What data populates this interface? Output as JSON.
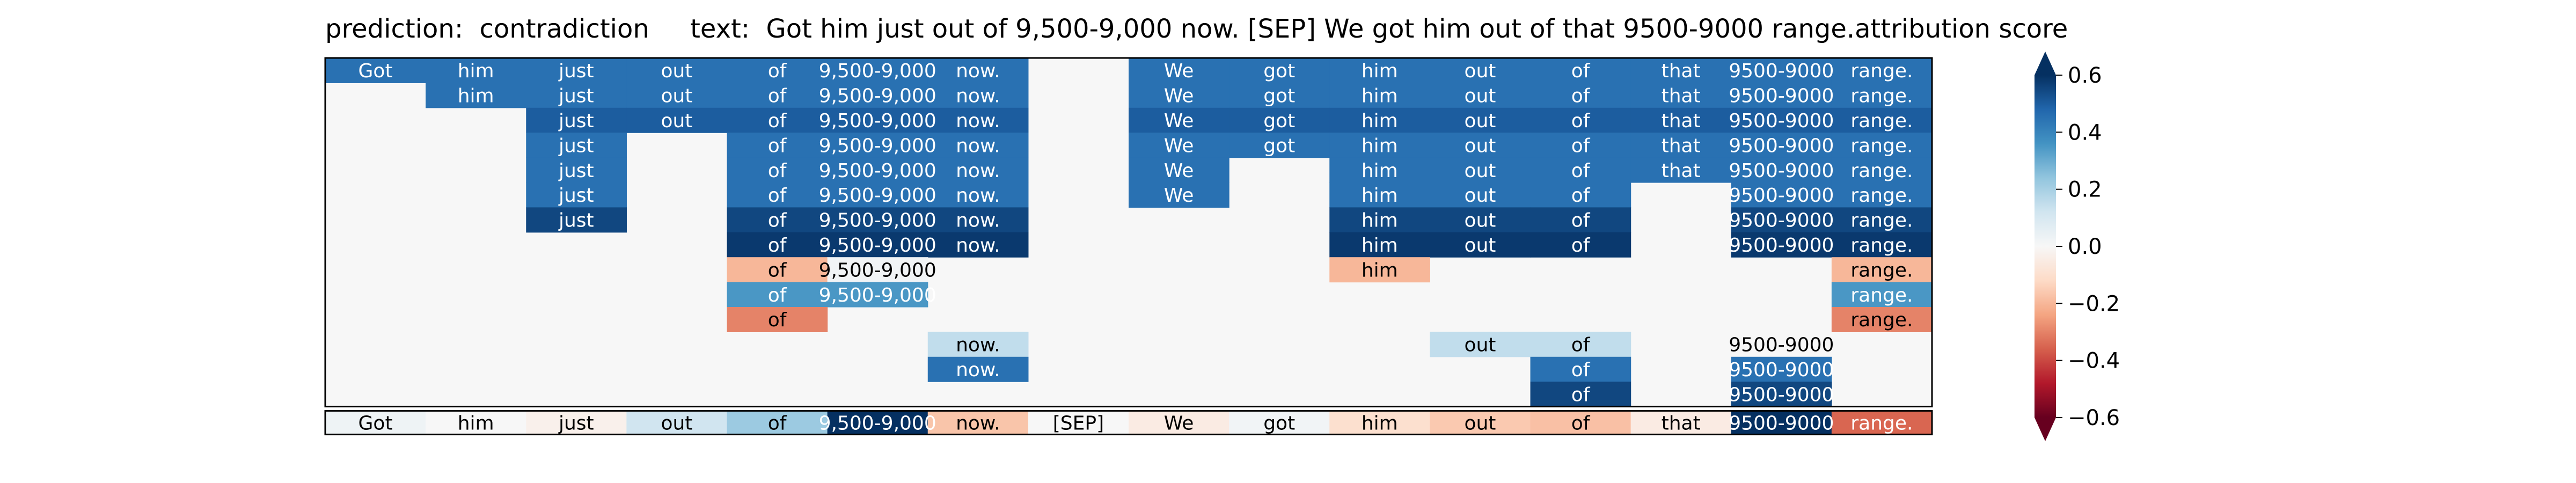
{
  "chart_data": {
    "type": "heatmap",
    "title": "prediction:  contradiction     text:  Got him just out of 9,500-9,000 now. [SEP] We got him out of that 9500-9000 range.attribution score",
    "tokens": [
      "Got",
      "him",
      "just",
      "out",
      "of",
      "9,500-9,000",
      "now.",
      "[SEP]",
      "We",
      "got",
      "him",
      "out",
      "of",
      "that",
      "9500-9000",
      "range."
    ],
    "layers": [
      [
        0.45,
        0.45,
        0.45,
        0.45,
        0.45,
        0.45,
        0.45,
        null,
        0.45,
        0.45,
        0.45,
        0.45,
        0.45,
        0.45,
        0.45,
        0.45
      ],
      [
        null,
        0.45,
        0.45,
        0.45,
        0.45,
        0.45,
        0.45,
        null,
        0.45,
        0.45,
        0.45,
        0.45,
        0.45,
        0.45,
        0.45,
        0.45
      ],
      [
        null,
        null,
        0.5,
        0.5,
        0.5,
        0.5,
        0.5,
        null,
        0.5,
        0.5,
        0.5,
        0.5,
        0.5,
        0.5,
        0.5,
        0.5
      ],
      [
        null,
        null,
        0.45,
        null,
        0.45,
        0.45,
        0.45,
        null,
        0.45,
        0.45,
        0.45,
        0.45,
        0.45,
        0.45,
        0.45,
        0.45
      ],
      [
        null,
        null,
        0.45,
        null,
        0.45,
        0.45,
        0.45,
        null,
        0.45,
        null,
        0.45,
        0.45,
        0.45,
        0.45,
        0.45,
        0.45
      ],
      [
        null,
        null,
        0.45,
        null,
        0.45,
        0.45,
        0.45,
        null,
        0.45,
        null,
        0.45,
        0.45,
        0.45,
        null,
        0.45,
        0.45
      ],
      [
        null,
        null,
        0.55,
        null,
        0.55,
        0.55,
        0.55,
        null,
        null,
        null,
        0.55,
        0.55,
        0.55,
        null,
        0.55,
        0.55
      ],
      [
        null,
        null,
        null,
        null,
        0.58,
        0.58,
        0.58,
        null,
        null,
        null,
        0.58,
        0.58,
        0.58,
        null,
        0.58,
        0.58
      ],
      [
        null,
        null,
        null,
        null,
        -0.2,
        0.02,
        null,
        null,
        null,
        null,
        -0.2,
        null,
        null,
        null,
        null,
        -0.2
      ],
      [
        null,
        null,
        null,
        null,
        0.35,
        0.35,
        null,
        null,
        null,
        null,
        null,
        null,
        null,
        null,
        null,
        0.35
      ],
      [
        null,
        null,
        null,
        null,
        -0.3,
        null,
        null,
        null,
        null,
        null,
        null,
        null,
        null,
        null,
        null,
        -0.3
      ],
      [
        null,
        null,
        null,
        null,
        null,
        null,
        0.15,
        null,
        null,
        null,
        null,
        0.15,
        0.15,
        null,
        0.0,
        null
      ],
      [
        null,
        null,
        null,
        null,
        null,
        null,
        0.45,
        null,
        null,
        null,
        null,
        null,
        0.45,
        null,
        0.45,
        null
      ],
      [
        null,
        null,
        null,
        null,
        null,
        null,
        null,
        null,
        null,
        null,
        null,
        null,
        0.55,
        null,
        0.55,
        null
      ]
    ],
    "summary": [
      0.03,
      0.0,
      -0.03,
      0.12,
      0.22,
      0.6,
      -0.17,
      0.0,
      -0.05,
      0.02,
      -0.1,
      -0.16,
      -0.18,
      -0.05,
      0.6,
      -0.35
    ],
    "colorbar": {
      "colormap": "RdBu",
      "range": [
        -0.6,
        0.6
      ],
      "ticks": [
        -0.6,
        -0.4,
        -0.2,
        0.0,
        0.2,
        0.4,
        0.6
      ],
      "tick_labels": [
        "−0.6",
        "−0.4",
        "−0.2",
        "0.0",
        "0.2",
        "0.4",
        "0.6"
      ],
      "extend": "both"
    }
  }
}
